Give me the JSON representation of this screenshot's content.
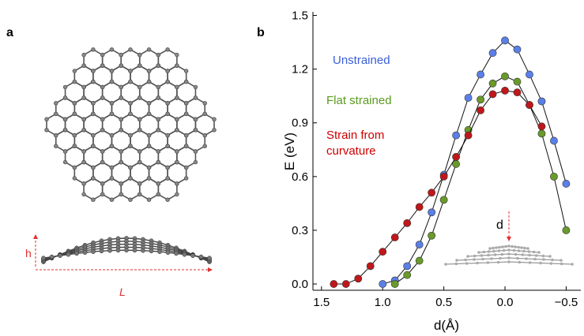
{
  "panel_a": {
    "label": "a",
    "h_label": "h",
    "L_label": "L"
  },
  "chart_data": {
    "type": "line",
    "panel_label": "b",
    "x_label": "d(Å)",
    "y_label": "E (eV)",
    "inset_label": "d",
    "xlim": [
      1.57,
      -0.62
    ],
    "ylim": [
      -0.035,
      1.52
    ],
    "xticks": [
      {
        "value": 1.5,
        "label": "1.5"
      },
      {
        "value": 1.0,
        "label": "1.0"
      },
      0.5,
      {
        "value": 0,
        "label": "0.0"
      },
      {
        "value": -0.5,
        "label": "−0.5"
      }
    ],
    "yticks": [
      {
        "value": 0,
        "label": "0.0"
      },
      0.3,
      0.6,
      0.9,
      1.2,
      1.5
    ],
    "series": [
      {
        "name": "Unstrained",
        "color": "#5b7fe8",
        "label_color": "#3a5fd9",
        "x": [
          1.0,
          0.9,
          0.8,
          0.7,
          0.6,
          0.5,
          0.4,
          0.3,
          0.2,
          0.1,
          0.0,
          -0.1,
          -0.2,
          -0.3,
          -0.4,
          -0.5
        ],
        "values": [
          0.0,
          0.02,
          0.1,
          0.22,
          0.4,
          0.61,
          0.83,
          1.04,
          1.17,
          1.29,
          1.36,
          1.31,
          1.17,
          1.02,
          0.8,
          0.56
        ]
      },
      {
        "name": "Flat strained",
        "color": "#6a9a2a",
        "label_color": "#5a9a1e",
        "x": [
          0.9,
          0.8,
          0.7,
          0.6,
          0.5,
          0.4,
          0.3,
          0.2,
          0.1,
          0.0,
          -0.1,
          -0.2,
          -0.3,
          -0.4,
          -0.5
        ],
        "values": [
          0.0,
          0.05,
          0.13,
          0.27,
          0.47,
          0.67,
          0.86,
          1.03,
          1.12,
          1.16,
          1.13,
          1.0,
          0.84,
          0.6,
          0.3
        ]
      },
      {
        "name": "Strain from curvature",
        "color": "#c0171b",
        "label_color": "#cc0000",
        "x": [
          1.4,
          1.3,
          1.2,
          1.1,
          1.0,
          0.9,
          0.8,
          0.7,
          0.6,
          0.5,
          0.4,
          0.3,
          0.2,
          0.1,
          0.0,
          -0.1,
          -0.2,
          -0.3
        ],
        "values": [
          0.0,
          0.0,
          0.03,
          0.1,
          0.18,
          0.26,
          0.34,
          0.43,
          0.51,
          0.6,
          0.71,
          0.83,
          0.97,
          1.06,
          1.08,
          1.07,
          1.0,
          0.88
        ]
      }
    ]
  }
}
